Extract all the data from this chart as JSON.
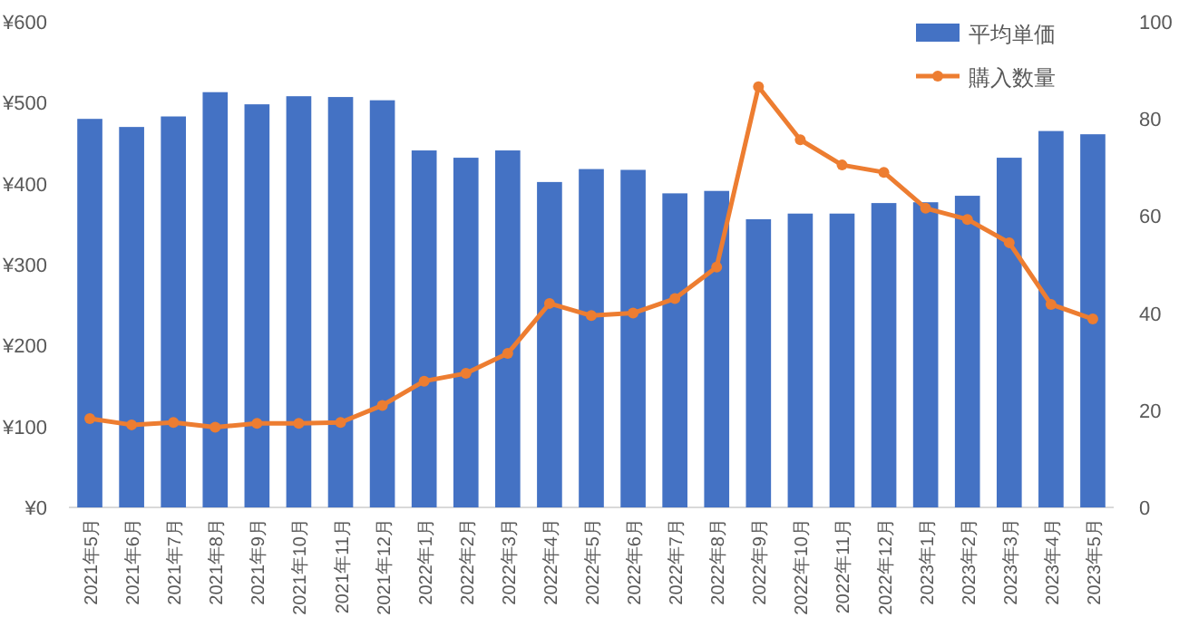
{
  "chart_data": {
    "type": "bar",
    "categories": [
      "2021年5月",
      "2021年6月",
      "2021年7月",
      "2021年8月",
      "2021年9月",
      "2021年10月",
      "2021年11月",
      "2021年12月",
      "2022年1月",
      "2022年2月",
      "2022年3月",
      "2022年4月",
      "2022年5月",
      "2022年6月",
      "2022年7月",
      "2022年8月",
      "2022年9月",
      "2022年10月",
      "2022年11月",
      "2022年12月",
      "2023年1月",
      "2023年2月",
      "2023年3月",
      "2023年4月",
      "2023年5月"
    ],
    "series": [
      {
        "name": "平均単価",
        "color": "#4472c4",
        "values": [
          480,
          470,
          483,
          513,
          498,
          508,
          507,
          503,
          441,
          432,
          441,
          402,
          418,
          417,
          388,
          391,
          356,
          363,
          363,
          376,
          377,
          385,
          432,
          465,
          461
        ]
      },
      {
        "name": "購入数量",
        "type": "line",
        "axis": "y2",
        "marker": "circle",
        "color": "#ed7d31",
        "values": [
          18.3,
          17,
          17.5,
          16.5,
          17.3,
          17.3,
          17.5,
          21,
          26,
          27.6,
          31.7,
          42,
          39.5,
          40,
          43,
          49.5,
          86.6,
          75.7,
          70.5,
          69,
          61.6,
          59.3,
          54.5,
          41.8,
          38.8
        ]
      }
    ],
    "ylim": [
      0,
      600
    ],
    "yticks": [
      {
        "value": 0,
        "label": "¥0"
      },
      {
        "value": 100,
        "label": "¥100"
      },
      {
        "value": 200,
        "label": "¥200"
      },
      {
        "value": 300,
        "label": "¥300"
      },
      {
        "value": 400,
        "label": "¥400"
      },
      {
        "value": 500,
        "label": "¥500"
      },
      {
        "value": 600,
        "label": "¥600"
      }
    ],
    "y2lim": [
      0,
      100
    ],
    "y2ticks": [
      0,
      20,
      40,
      60,
      80,
      100
    ],
    "legend": "top right"
  }
}
